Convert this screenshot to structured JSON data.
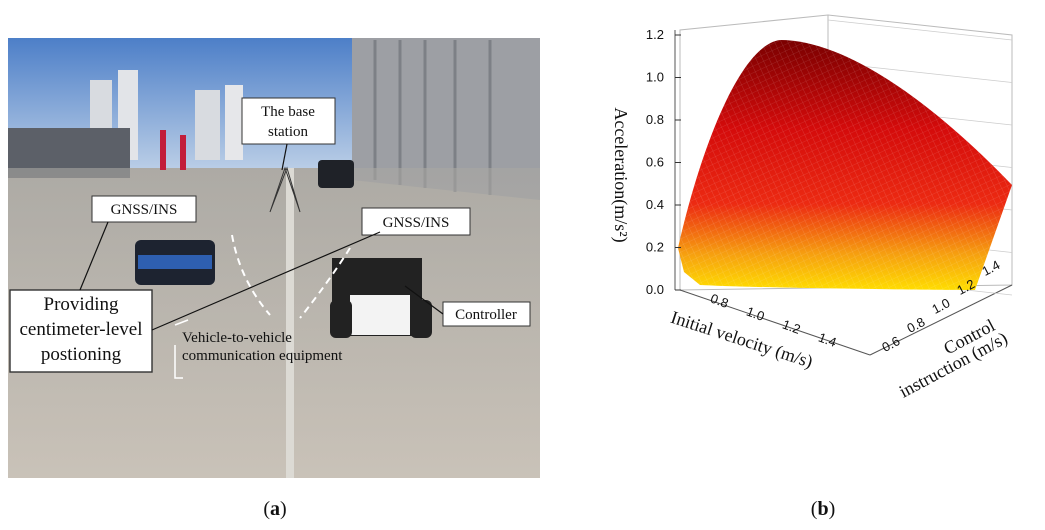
{
  "panel_a": {
    "base_station": [
      "The base",
      "station"
    ],
    "gnss_left": "GNSS/INS",
    "gnss_right": "GNSS/INS",
    "positioning": [
      "Providing",
      "centimeter-level",
      "postioning"
    ],
    "v2v": [
      "Vehicle-to-vehicle",
      "communication equipment"
    ],
    "controller": "Controller",
    "caption": [
      "(",
      "a",
      ")"
    ]
  },
  "panel_b": {
    "z_axis_label": "Acceleration(m/s²)",
    "x_axis_label": "Initial velocity (m/s)",
    "y_axis_label": [
      "Control",
      "instruction (m/s)"
    ],
    "zticks": [
      "0.0",
      "0.2",
      "0.4",
      "0.6",
      "0.8",
      "1.0",
      "1.2"
    ],
    "xticks": [
      "0.8",
      "1.0",
      "1.2",
      "1.4"
    ],
    "yticks": [
      "0.6",
      "0.8",
      "1.0",
      "1.2",
      "1.4"
    ],
    "caption": [
      "(",
      "b",
      ")"
    ]
  }
}
